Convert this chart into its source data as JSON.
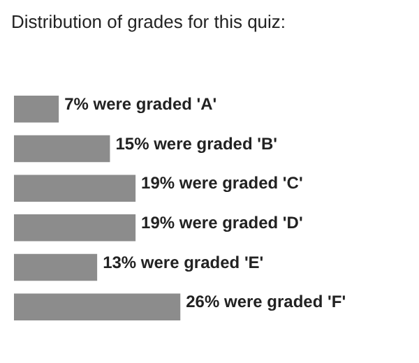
{
  "chart_data": {
    "type": "bar",
    "orientation": "horizontal",
    "title": "Distribution of grades for this quiz:",
    "categories": [
      null,
      null,
      null,
      null,
      null,
      null
    ],
    "values": [
      7,
      15,
      19,
      19,
      13,
      26
    ],
    "color": "#8c8c8c",
    "value_labels": [
      "7% were graded 'A'",
      "15% were graded 'B'",
      "19% were graded 'C'",
      "19% were graded 'D'",
      "13% were graded 'E'",
      "26% were graded 'F'"
    ]
  }
}
